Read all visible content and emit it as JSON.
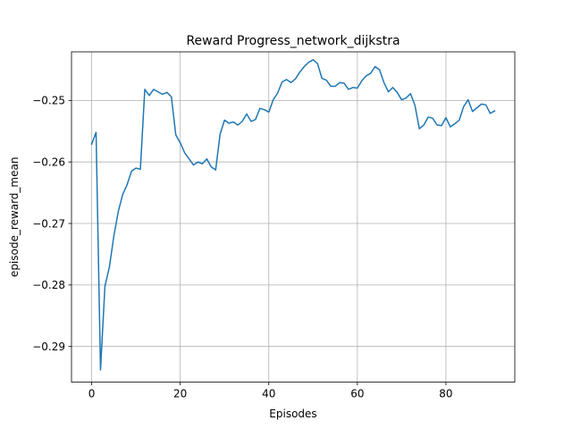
{
  "chart_data": {
    "type": "line",
    "title": "Reward Progress_network_dijkstra",
    "xlabel": "Episodes",
    "ylabel": "episode_reward_mean",
    "xlim": [
      -4.55,
      95.55
    ],
    "ylim": [
      -0.2958,
      -0.2421
    ],
    "xticks": [
      0,
      20,
      40,
      60,
      80
    ],
    "xtick_labels": [
      "0",
      "20",
      "40",
      "60",
      "80"
    ],
    "yticks": [
      -0.29,
      -0.28,
      -0.27,
      -0.26,
      -0.25
    ],
    "ytick_labels": [
      "−0.29",
      "−0.28",
      "−0.27",
      "−0.26",
      "−0.25"
    ],
    "grid": true,
    "line_color": "#1f77b4",
    "series": [
      {
        "name": "episode_reward_mean",
        "x": [
          0,
          1,
          2,
          3,
          4,
          5,
          6,
          7,
          8,
          9,
          10,
          11,
          12,
          13,
          14,
          15,
          16,
          17,
          18,
          19,
          20,
          21,
          22,
          23,
          24,
          25,
          26,
          27,
          28,
          29,
          30,
          31,
          32,
          33,
          34,
          35,
          36,
          37,
          38,
          39,
          40,
          41,
          42,
          43,
          44,
          45,
          46,
          47,
          48,
          49,
          50,
          51,
          52,
          53,
          54,
          55,
          56,
          57,
          58,
          59,
          60,
          61,
          62,
          63,
          64,
          65,
          66,
          67,
          68,
          69,
          70,
          71,
          72,
          73,
          74,
          75,
          76,
          77,
          78,
          79,
          80,
          81,
          82,
          83,
          84,
          85,
          86,
          87,
          88,
          89,
          90,
          91
        ],
        "values": [
          -0.2571,
          -0.2552,
          -0.2938,
          -0.2802,
          -0.2771,
          -0.2721,
          -0.2681,
          -0.2653,
          -0.2637,
          -0.2615,
          -0.261,
          -0.2612,
          -0.2482,
          -0.2492,
          -0.2482,
          -0.2486,
          -0.249,
          -0.2487,
          -0.2494,
          -0.2556,
          -0.2569,
          -0.2585,
          -0.2595,
          -0.2605,
          -0.26,
          -0.2603,
          -0.2595,
          -0.2608,
          -0.2613,
          -0.2555,
          -0.2532,
          -0.2537,
          -0.2535,
          -0.254,
          -0.2534,
          -0.2522,
          -0.2534,
          -0.2531,
          -0.2513,
          -0.2515,
          -0.2519,
          -0.2499,
          -0.2488,
          -0.247,
          -0.2466,
          -0.2471,
          -0.2465,
          -0.2454,
          -0.2445,
          -0.2438,
          -0.2434,
          -0.244,
          -0.2464,
          -0.2467,
          -0.2477,
          -0.2477,
          -0.2471,
          -0.2472,
          -0.2482,
          -0.2479,
          -0.248,
          -0.2468,
          -0.246,
          -0.2456,
          -0.2445,
          -0.245,
          -0.2471,
          -0.2486,
          -0.2479,
          -0.2487,
          -0.2499,
          -0.2496,
          -0.2489,
          -0.2508,
          -0.2546,
          -0.254,
          -0.2527,
          -0.2529,
          -0.254,
          -0.2541,
          -0.2528,
          -0.2543,
          -0.2538,
          -0.2532,
          -0.251,
          -0.2499,
          -0.2518,
          -0.2512,
          -0.2506,
          -0.2507,
          -0.2521,
          -0.2517
        ]
      }
    ]
  }
}
